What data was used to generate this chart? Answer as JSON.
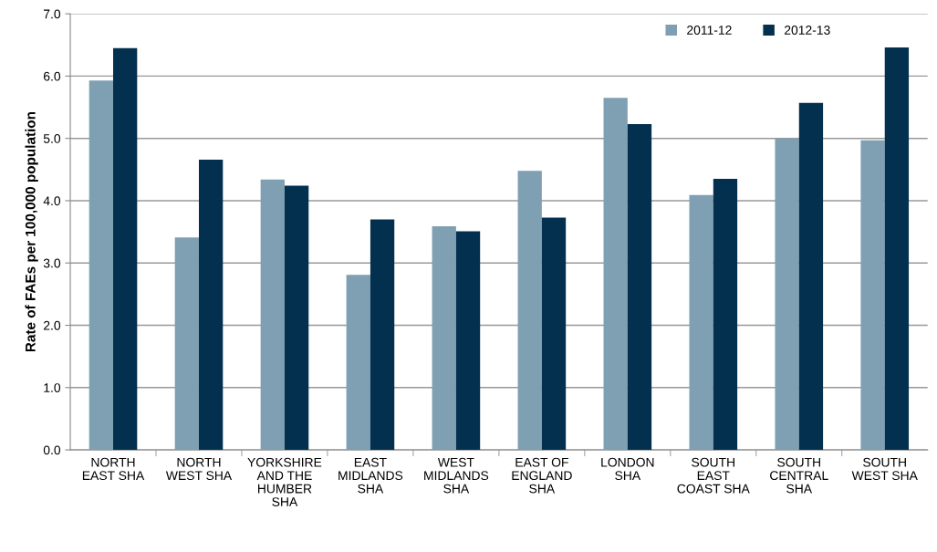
{
  "chart_data": {
    "type": "bar",
    "ylabel": "Rate of FAEs per 100,000 population",
    "categories": [
      "NORTH\nEAST SHA",
      "NORTH\nWEST SHA",
      "YORKSHIRE\nAND THE\nHUMBER\nSHA",
      "EAST\nMIDLANDS\nSHA",
      "WEST\nMIDLANDS\nSHA",
      "EAST OF\nENGLAND\nSHA",
      "LONDON\nSHA",
      "SOUTH\nEAST\nCOAST SHA",
      "SOUTH\nCENTRAL\nSHA",
      "SOUTH\nWEST SHA"
    ],
    "series": [
      {
        "name": "2011-12",
        "color": "#7f9fb2",
        "values": [
          5.93,
          3.41,
          4.34,
          2.81,
          3.59,
          4.48,
          5.65,
          4.09,
          5.0,
          4.97
        ]
      },
      {
        "name": "2012-13",
        "color": "#04304f",
        "values": [
          6.45,
          4.66,
          4.24,
          3.7,
          3.51,
          3.73,
          5.23,
          4.35,
          5.57,
          6.46
        ]
      }
    ],
    "ylim": [
      0,
      7
    ],
    "yticks": [
      {
        "value": 0,
        "label": "0.0"
      },
      {
        "value": 1,
        "label": "1.0"
      },
      {
        "value": 2,
        "label": "2.0"
      },
      {
        "value": 3,
        "label": "3.0"
      },
      {
        "value": 4,
        "label": "4.0"
      },
      {
        "value": 5,
        "label": "5.0"
      },
      {
        "value": 6,
        "label": "6.0"
      },
      {
        "value": 7,
        "label": "7.0"
      }
    ],
    "grid": "y",
    "legend": "top right"
  }
}
